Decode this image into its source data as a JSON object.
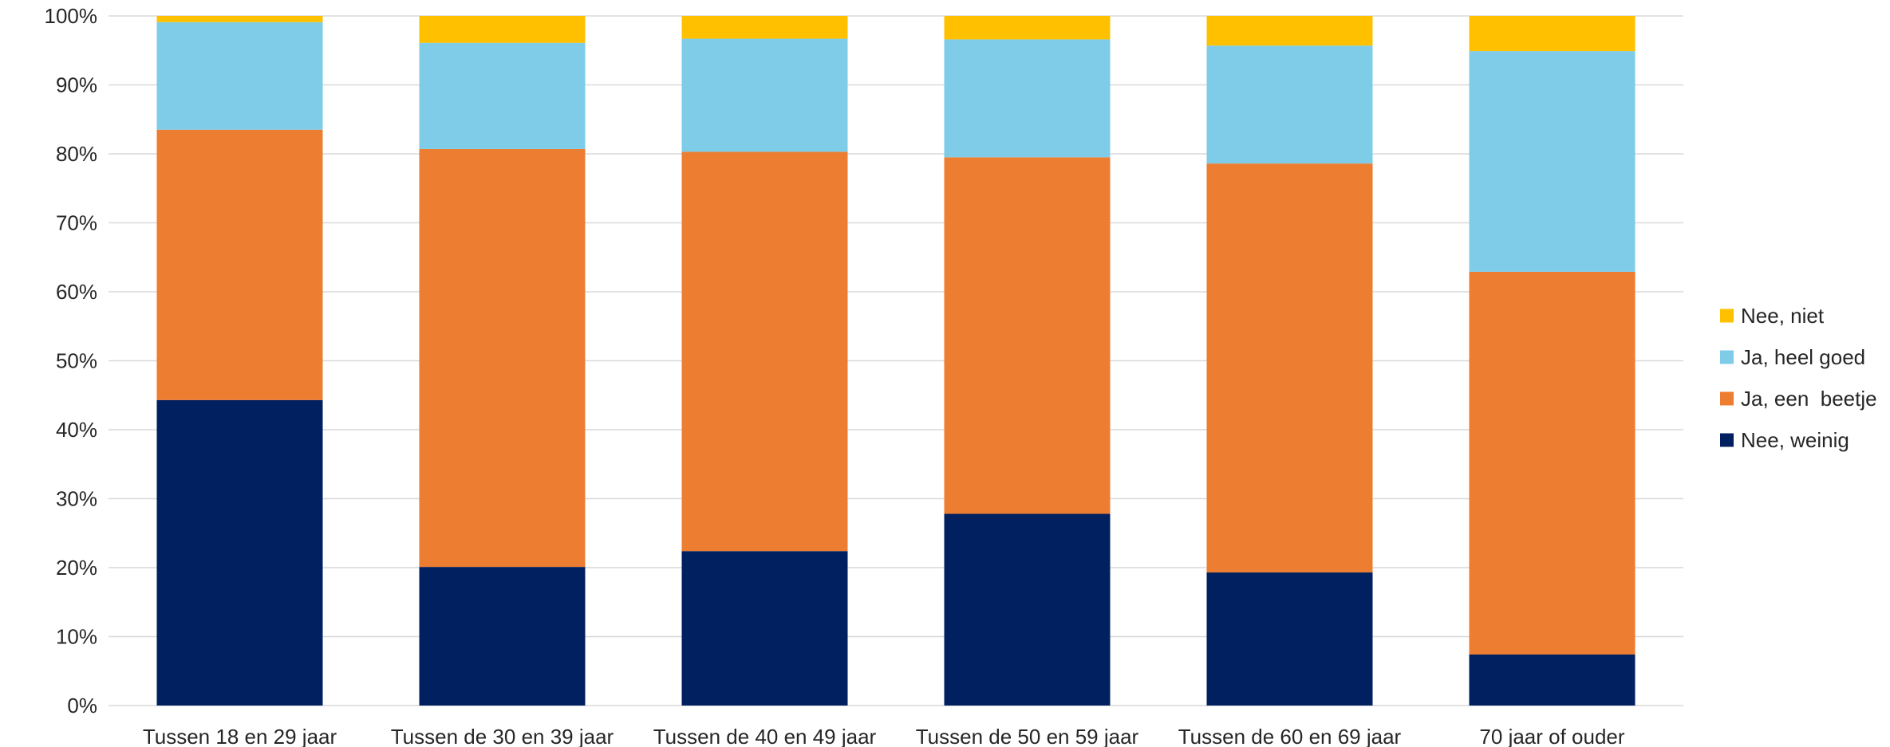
{
  "chart_data": {
    "type": "bar",
    "stacked": true,
    "categories": [
      "Tussen 18 en 29 jaar",
      "Tussen de 30 en 39 jaar",
      "Tussen de 40 en 49 jaar",
      "Tussen de 50 en 59 jaar",
      "Tussen de 60 en 69 jaar",
      "70 jaar of ouder"
    ],
    "series": [
      {
        "name": "Nee, weinig",
        "color": "#002060",
        "values": [
          44.3,
          20.1,
          22.4,
          27.8,
          19.3,
          7.4
        ]
      },
      {
        "name": "Ja, een  beetje",
        "color": "#ED7D31",
        "values": [
          39.2,
          60.6,
          57.9,
          51.7,
          59.3,
          55.5
        ]
      },
      {
        "name": "Ja, heel goed",
        "color": "#7ECCE8",
        "values": [
          15.6,
          15.4,
          16.4,
          17.1,
          17.1,
          32.0
        ]
      },
      {
        "name": "Nee, niet",
        "color": "#FFC000",
        "values": [
          0.9,
          3.9,
          3.3,
          3.4,
          4.3,
          5.1
        ]
      }
    ],
    "title": "",
    "xlabel": "",
    "ylabel": "",
    "ylim": [
      0,
      100
    ],
    "yticks": [
      "0%",
      "10%",
      "20%",
      "30%",
      "40%",
      "50%",
      "60%",
      "70%",
      "80%",
      "90%",
      "100%"
    ],
    "grid": true,
    "legend_position": "right"
  }
}
